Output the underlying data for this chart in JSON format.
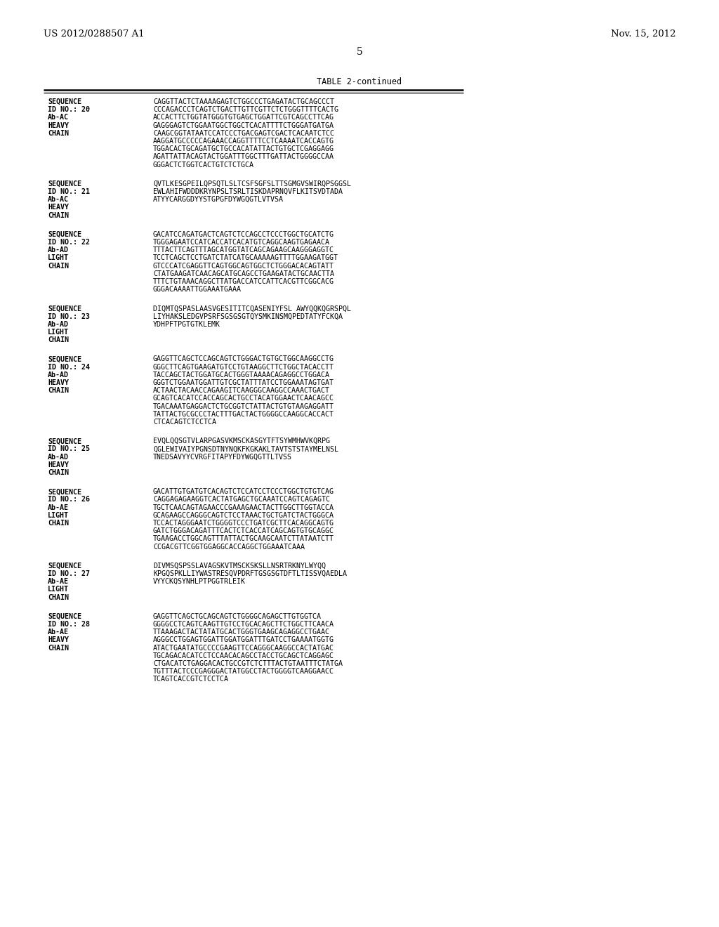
{
  "header_left": "US 2012/0288507 A1",
  "header_right": "Nov. 15, 2012",
  "page_number": "5",
  "table_title": "TABLE 2-continued",
  "background_color": "#ffffff",
  "text_color": "#000000",
  "entries": [
    {
      "labels": [
        "SEQUENCE",
        "ID NO.: 20",
        "Ab-AC",
        "HEAVY",
        "CHAIN"
      ],
      "lines": [
        "CAGGTTACTCTAAAAGAGTCTGGCCCTGAGATACTGCAGCCCT",
        "CCCAGACCCTCAGTCTGACTTGTTCGTTCTCTGGGTTTTCACTG",
        "ACCACTTCTGGTATGGGTGTGAGCTGGATTCGTCAGCCTTCAG",
        "GAGGGAGTCTGGAATGGCTGGCTCACATTTTCTGGGATGATGA",
        "CAAGCGGTATAATCCATCCCTGACGAGTCGACTCACAATCTCC",
        "AAGGATGCCCCCAGAAACCAGGTTTTCCTCAAAATCACCAGTG",
        "TGGACACTGCAGATGCTGCCACATATTACTGTGCTCGAGGAGG",
        "AGATTATTACAGTACTGGATTTGGCTTTGATTACTGGGGCCAA",
        "GGGACTCTGGTCACTGTCTCTGCA"
      ]
    },
    {
      "labels": [
        "SEQUENCE",
        "ID NO.: 21",
        "Ab-AC",
        "HEAVY",
        "CHAIN"
      ],
      "lines": [
        "QVTLKESGPEILQPSQTLSLTCSFSGFSLTTSGMGVSWIRQPSGGSL",
        "EWLAHIFWDDDKRYNPSLTSRLTISKDAPRNQVFLKITSVDTADA",
        "ATYYCARGGDYYSTGPGFDYWGQGTLVTVSA"
      ]
    },
    {
      "labels": [
        "SEQUENCE",
        "ID NO.: 22",
        "Ab-AD",
        "LIGHT",
        "CHAIN"
      ],
      "lines": [
        "GACATCCAGATGACTCAGTCTCCAGCCTCCCTGGCTGCATCTG",
        "TGGGAGAATCCATCACCATCACATGTCAGGCAAGTGAGAACA",
        "TTTACTTCAGTTTAGCATGGTATCAGCAGAAGCAAGGGAGGTC",
        "TCCTCAGCTCCTGATCTATCATGCAAAAAGTTTTGGAAGATGGT",
        "GTCCCATCGAGGTTCAGTGGCAGTGGCTCTGGGACACAGTATT",
        "CTATGAAGATCAACAGCATGCAGCCTGAAGATACTGCAACTTA",
        "TTTCTGTAAACAGGCTTATGACCATCCATTCACGTTCGGCACG",
        "GGGACAAAATTGGAAATGAAA"
      ]
    },
    {
      "labels": [
        "SEQUENCE",
        "ID NO.: 23",
        "Ab-AD",
        "LIGHT",
        "CHAIN"
      ],
      "lines": [
        "DIQMTQSPASLAASVGESITITCQASENIYFSL AWYQQKQGRSPQL",
        "LIYHAKSLEDGVPSRFSGSGSGTQYSMKINSMQPEDTATYFCKQA",
        "YDHPFTPGTGTKLEMK"
      ]
    },
    {
      "labels": [
        "SEQUENCE",
        "ID NO.: 24",
        "Ab-AD",
        "HEAVY",
        "CHAIN"
      ],
      "lines": [
        "GAGGTTCAGCTCCAGCAGTCTGGGACTGTGCTGGCAAGGCCTG",
        "GGGCTTCAGTGAAGATGTCCTGTAAGGCTTCTGGCTACACCTT",
        "TACCAGCTACTGGATGCACTGGGTAAAACAGAGGCCTGGACA",
        "GGGTCTGGAATGGATTGTCGCTATTTATCCTGGAAATAGTGAT",
        "ACTAACTACAACCAGAAGITCAAGGGCAAGGCCAAACTGACT",
        "GCAGTCACATCCACCAGCACTGCCTACATGGAACTCAACAGCC",
        "TGACAAATGAGGACTCTGCGGTCTATTACTGTGTAAGAGGATT",
        "TATTACTGCGCCCTACTTTGACTACTGGGGCCAAGGCACCACT",
        "CTCACAGTCTCCTCA"
      ]
    },
    {
      "labels": [
        "SEQUENCE",
        "ID NO.: 25",
        "Ab-AD",
        "HEAVY",
        "CHAIN"
      ],
      "lines": [
        "EVQLQQSGTVLARPGASVKMSCKASGYTFTSYWMHWVKQRPG",
        "QGLEWIVAIYPGNSDTNYNQKFKGKAKLTAVTSTSTAYMELNSL",
        "TNEDSAVYYCVRGFITAPYFDYWGQGTTLTVSS"
      ]
    },
    {
      "labels": [
        "SEQUENCE",
        "ID NO.: 26",
        "Ab-AE",
        "LIGHT",
        "CHAIN"
      ],
      "lines": [
        "GACATTGTGATGTCACAGTCTCCATCCTCCCTGGCTGTGTCAG",
        "CAGGAGAGAAGGTCACTATGAGCTGCAAATCCAGTCAGAGTC",
        "TGCTCAACAGTAGAACCCGAAAGAACTACTTGGCTTGGTACCA",
        "GCAGAAGCCAGGGCAGTCTCCTAAACTGCTGATCTACTGGGCA",
        "TCCACTAGGGAATCTGGGGTCCCTGATCGCTTCACAGGCAGTG",
        "GATCTGGGACAGATTTCACTCTCACCATCAGCAGTGTGCAGGC",
        "TGAAGACCTGGCAGTTTATTACTGCAAGCAATCTTATAATCTT",
        "CCGACGTTCGGTGGAGGCACCAGGCTGGAAATCAAA"
      ]
    },
    {
      "labels": [
        "SEQUENCE",
        "ID NO.: 27",
        "Ab-AE",
        "LIGHT",
        "CHAIN"
      ],
      "lines": [
        "DIVMSQSPSSLAVAGSKVTMSCKSKSLLNSRTRKNYLWYQQ",
        "KPGQSPKLLIYWASTRESQVPDRFTGSGSGTDFTLTISSVQAEDLA",
        "VYYCKQSYNHLPTPGGTRLEIK"
      ]
    },
    {
      "labels": [
        "SEQUENCE",
        "ID NO.: 28",
        "Ab-AE",
        "HEAVY",
        "CHAIN"
      ],
      "lines": [
        "GAGGTTCAGCTGCAGCAGTCTGGGGCAGAGCTTGTGGTCA",
        "GGGGCCTCAGTCAAGTTGTCCTGCACAGCTTCTGGCTTCAACA",
        "TTAAAGACTACTATATGCACTGGGTGAAGCAGAGGCCTGAAC",
        "AGGGCCTGGAGTGGATTGGATGGATTTGATCCTGAAAATGGTG",
        "ATACTGAATATGCCCCGAAGTTCCAGGGCAAGGCCACTATGAC",
        "TGCAGACACATCCTCCAACACAGCCTACCTGCAGCTCAGGAGC",
        "CTGACATCTGAGGACACTGCCGTCTCTTTACTGTAATTTCTATGA",
        "TGTTTACTCCCGAGGGACTATGGCCTACTGGGGTCAAGGAACC",
        "TCAGTCACCGTCTCCTCA"
      ]
    }
  ]
}
